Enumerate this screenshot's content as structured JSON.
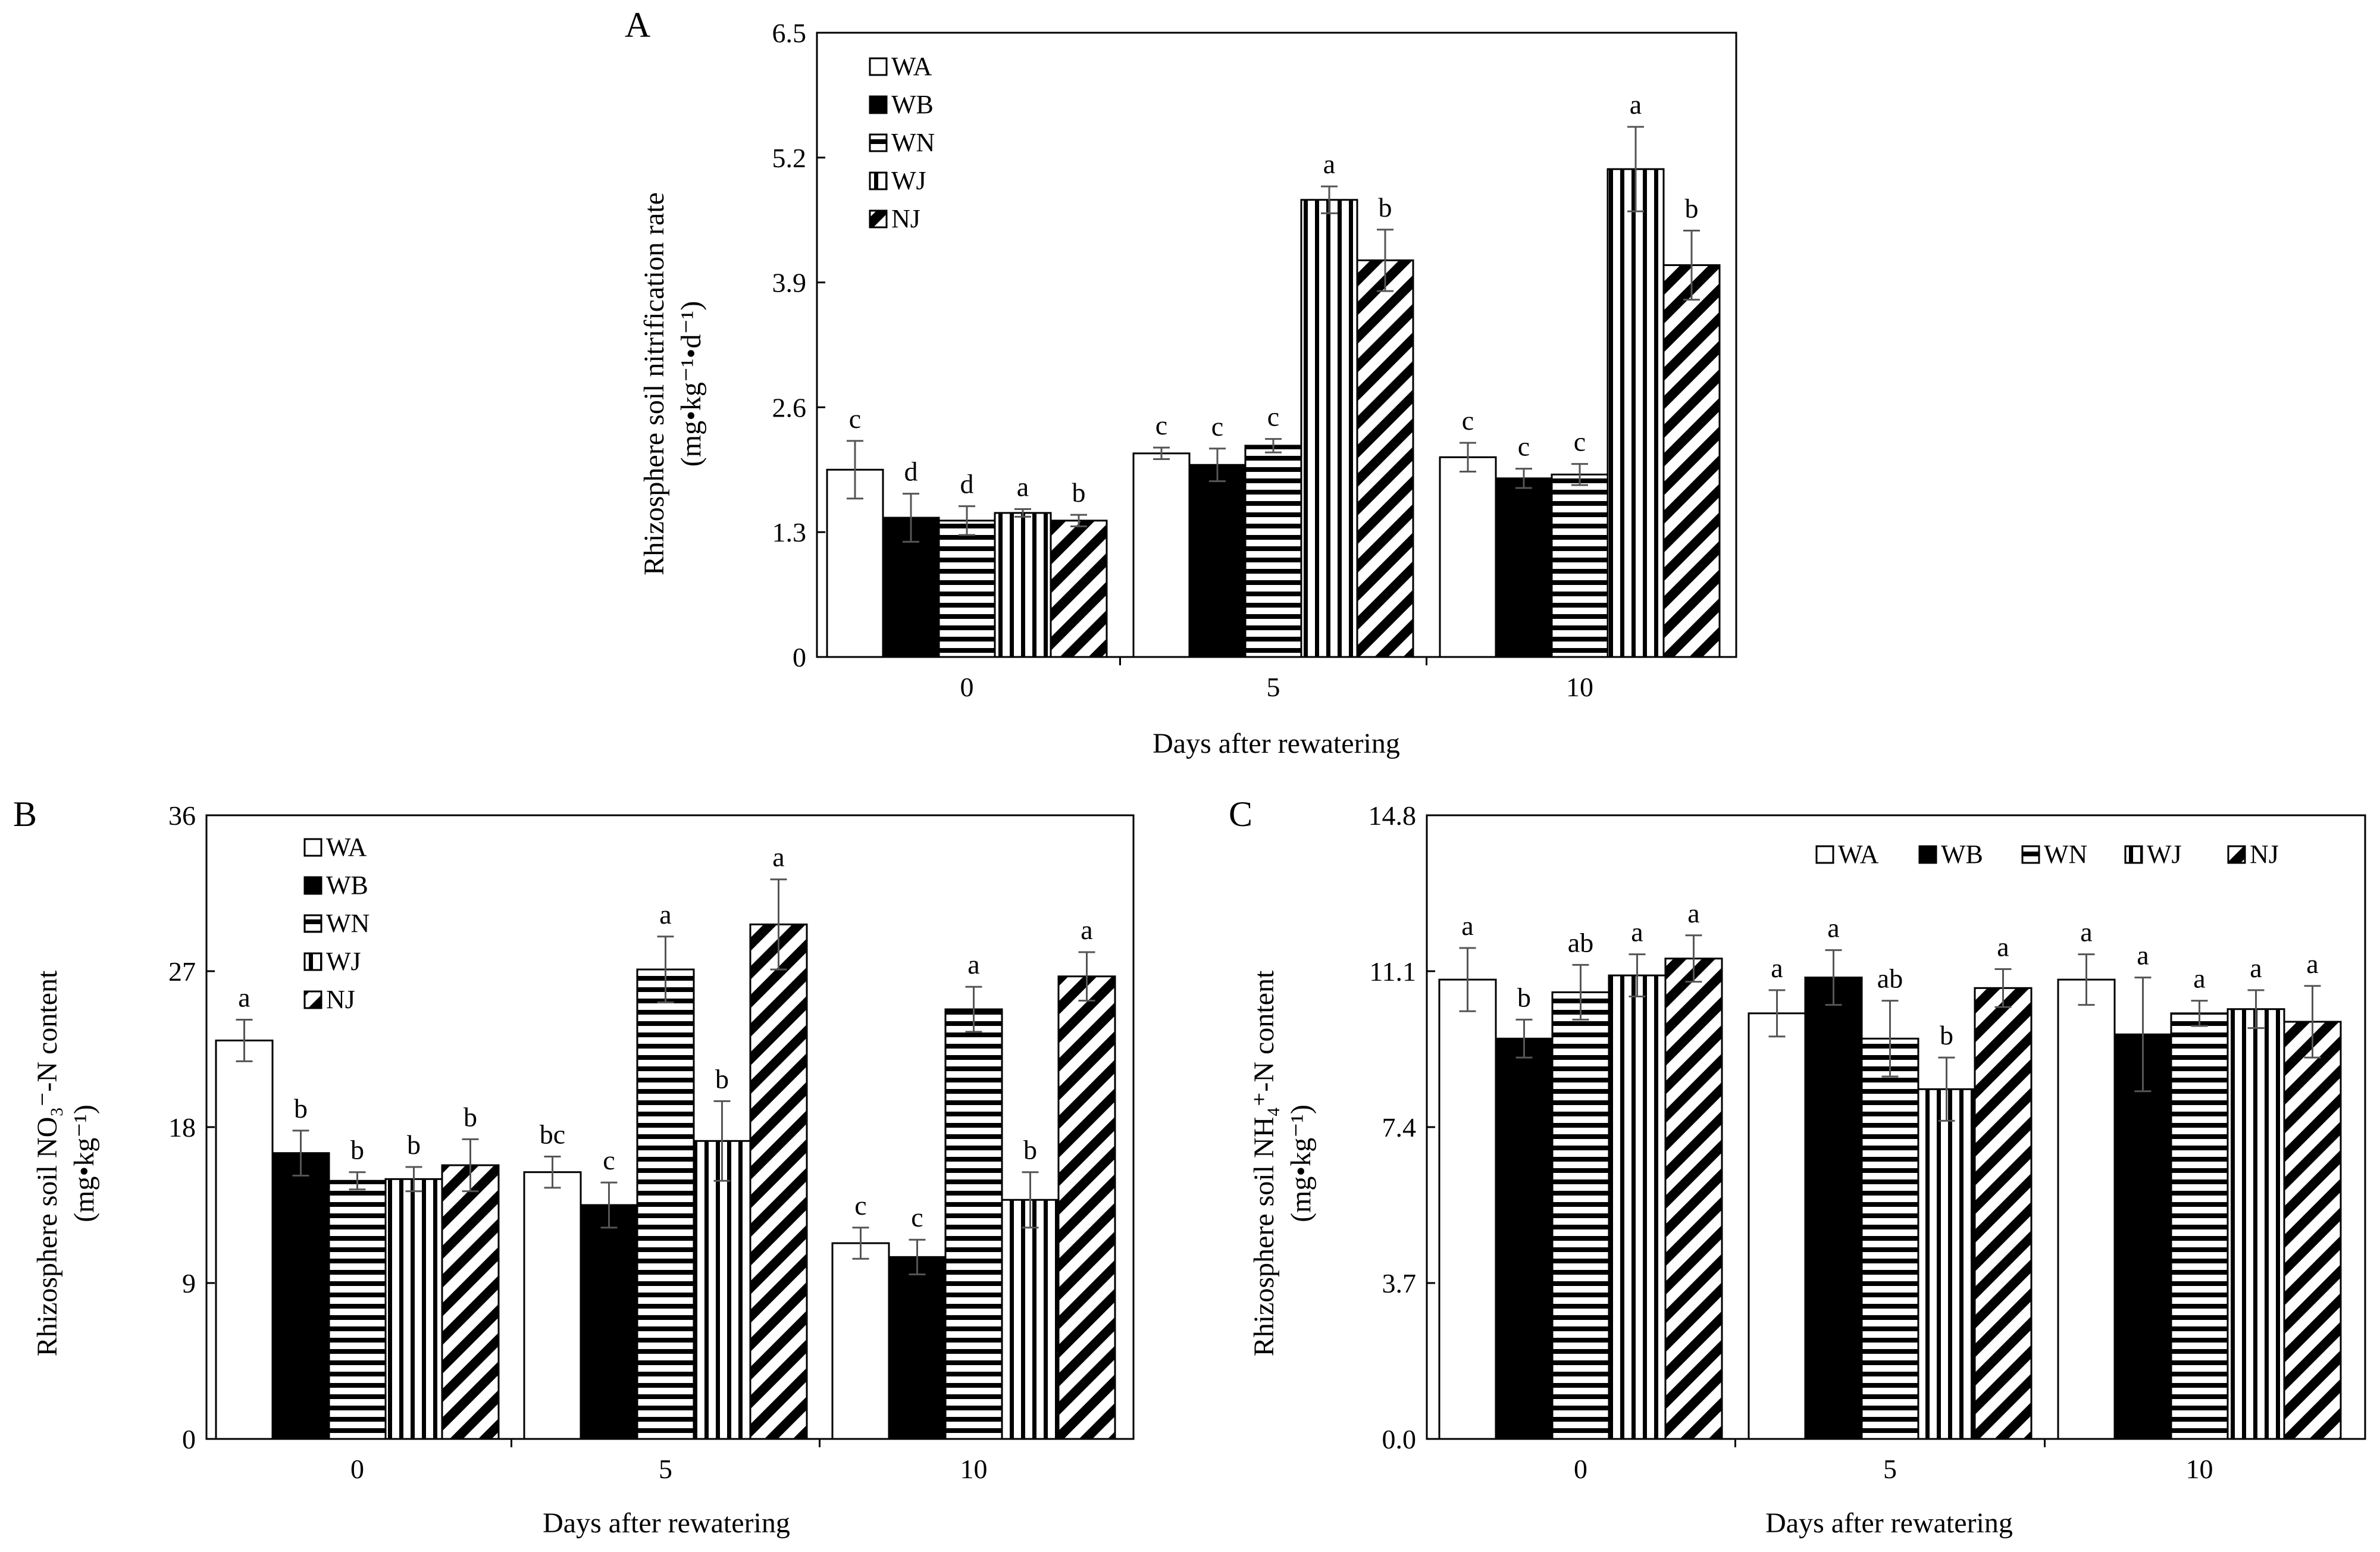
{
  "chart_data": [
    {
      "id": "A",
      "type": "bar",
      "panel_label": "A",
      "ylabel_line1": "Rhizosphere soil nitrification rate",
      "ylabel_line2": "(mg•kg⁻¹•d⁻¹)",
      "xlabel": "Days after rewatering",
      "categories": [
        "0",
        "5",
        "10"
      ],
      "yticks": [
        "0",
        "1.3",
        "2.6",
        "3.9",
        "5.2",
        "6.5"
      ],
      "ylim": [
        0,
        6.5
      ],
      "legend_layout": "vertical",
      "series": [
        {
          "name": "WA",
          "pattern": "white",
          "values": [
            1.95,
            2.12,
            2.08
          ],
          "errors": [
            0.3,
            0.06,
            0.15
          ],
          "letters": [
            "c",
            "c",
            "c"
          ]
        },
        {
          "name": "WB",
          "pattern": "black",
          "values": [
            1.45,
            2.0,
            1.86
          ],
          "errors": [
            0.25,
            0.17,
            0.1
          ],
          "letters": [
            "d",
            "c",
            "c"
          ]
        },
        {
          "name": "WN",
          "pattern": "hlines",
          "values": [
            1.42,
            2.2,
            1.9
          ],
          "errors": [
            0.15,
            0.07,
            0.11
          ],
          "letters": [
            "d",
            "c",
            "c"
          ]
        },
        {
          "name": "WJ",
          "pattern": "vlines",
          "values": [
            1.5,
            4.76,
            5.08
          ],
          "errors": [
            0.04,
            0.14,
            0.44
          ],
          "letters": [
            "a",
            "a",
            "a"
          ]
        },
        {
          "name": "NJ",
          "pattern": "diag",
          "values": [
            1.42,
            4.13,
            4.08
          ],
          "errors": [
            0.06,
            0.32,
            0.36
          ],
          "letters": [
            "b",
            "b",
            "b"
          ]
        }
      ]
    },
    {
      "id": "B",
      "type": "bar",
      "panel_label": "B",
      "ylabel_line1": "Rhizosphere soil NO₃⁻-N content",
      "ylabel_line2": "(mg•kg⁻¹)",
      "xlabel": "Days after rewatering",
      "categories": [
        "0",
        "5",
        "10"
      ],
      "yticks": [
        "0",
        "9",
        "18",
        "27",
        "36"
      ],
      "ylim": [
        0,
        36
      ],
      "legend_layout": "vertical",
      "series": [
        {
          "name": "WA",
          "pattern": "white",
          "values": [
            23.0,
            15.4,
            11.3
          ],
          "errors": [
            1.2,
            0.9,
            0.9
          ],
          "letters": [
            "a",
            "bc",
            "c"
          ]
        },
        {
          "name": "WB",
          "pattern": "black",
          "values": [
            16.5,
            13.5,
            10.5
          ],
          "errors": [
            1.3,
            1.3,
            1.0
          ],
          "letters": [
            "b",
            "c",
            "c"
          ]
        },
        {
          "name": "WN",
          "pattern": "hlines",
          "values": [
            14.9,
            27.1,
            24.8
          ],
          "errors": [
            0.5,
            1.9,
            1.3
          ],
          "letters": [
            "b",
            "a",
            "a"
          ]
        },
        {
          "name": "WJ",
          "pattern": "vlines",
          "values": [
            15.0,
            17.2,
            13.8
          ],
          "errors": [
            0.7,
            2.3,
            1.6
          ],
          "letters": [
            "b",
            "b",
            "b"
          ]
        },
        {
          "name": "NJ",
          "pattern": "diag",
          "values": [
            15.8,
            29.7,
            26.7
          ],
          "errors": [
            1.5,
            2.6,
            1.4
          ],
          "letters": [
            "b",
            "a",
            "a"
          ]
        }
      ]
    },
    {
      "id": "C",
      "type": "bar",
      "panel_label": "C",
      "ylabel_line1": "Rhizosphere soil NH₄⁺-N content",
      "ylabel_line2": "(mg•kg⁻¹)",
      "xlabel": "Days after rewatering",
      "categories": [
        "0",
        "5",
        "10"
      ],
      "yticks": [
        "0.0",
        "3.7",
        "7.4",
        "11.1",
        "14.8"
      ],
      "ylim": [
        0,
        14.8
      ],
      "legend_layout": "horizontal",
      "series": [
        {
          "name": "WA",
          "pattern": "white",
          "values": [
            10.9,
            10.1,
            10.9
          ],
          "errors": [
            0.75,
            0.55,
            0.6
          ],
          "letters": [
            "a",
            "a",
            "a"
          ]
        },
        {
          "name": "WB",
          "pattern": "black",
          "values": [
            9.5,
            10.95,
            9.6
          ],
          "errors": [
            0.45,
            0.65,
            1.35
          ],
          "letters": [
            "b",
            "a",
            "a"
          ]
        },
        {
          "name": "WN",
          "pattern": "hlines",
          "values": [
            10.6,
            9.5,
            10.1
          ],
          "errors": [
            0.65,
            0.9,
            0.3
          ],
          "letters": [
            "ab",
            "ab",
            "a"
          ]
        },
        {
          "name": "WJ",
          "pattern": "vlines",
          "values": [
            11.0,
            8.3,
            10.2
          ],
          "errors": [
            0.5,
            0.75,
            0.45
          ],
          "letters": [
            "a",
            "b",
            "a"
          ]
        },
        {
          "name": "NJ",
          "pattern": "diag",
          "values": [
            11.4,
            10.7,
            9.9
          ],
          "errors": [
            0.55,
            0.45,
            0.85
          ],
          "letters": [
            "a",
            "a",
            "a"
          ]
        }
      ]
    }
  ]
}
